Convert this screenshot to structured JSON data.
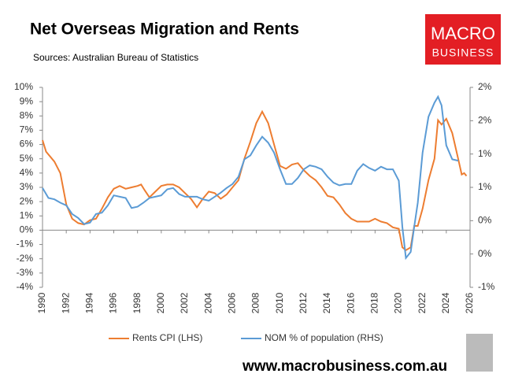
{
  "chart_data": {
    "type": "line",
    "title": "Net Overseas Migration and Rents",
    "subtitle": "Sources: Australian Bureau of Statistics",
    "xlim": [
      1990,
      2026
    ],
    "xticks": [
      1990,
      1992,
      1994,
      1996,
      1998,
      2000,
      2002,
      2004,
      2006,
      2008,
      2010,
      2012,
      2014,
      2016,
      2018,
      2020,
      2022,
      2024,
      2026
    ],
    "ylim": [
      -4,
      10
    ],
    "yticks": [
      {
        "value": -4,
        "label": "-4%"
      },
      {
        "value": -3,
        "label": "-3%"
      },
      {
        "value": -2,
        "label": "-2%"
      },
      {
        "value": -1,
        "label": "-1%"
      },
      {
        "value": 0,
        "label": "0%"
      },
      {
        "value": 1,
        "label": "1%"
      },
      {
        "value": 2,
        "label": "2%"
      },
      {
        "value": 3,
        "label": "3%"
      },
      {
        "value": 4,
        "label": "4%"
      },
      {
        "value": 5,
        "label": "5%"
      },
      {
        "value": 6,
        "label": "6%"
      },
      {
        "value": 7,
        "label": "7%"
      },
      {
        "value": 8,
        "label": "8%"
      },
      {
        "value": 9,
        "label": "9%"
      },
      {
        "value": 10,
        "label": "10%"
      }
    ],
    "y2lim": [
      -1,
      2
    ],
    "y2ticks": [
      {
        "value": -1,
        "label": "-1%"
      },
      {
        "value": -0.5,
        "label": "0%"
      },
      {
        "value": 0,
        "label": "0%"
      },
      {
        "value": 0.5,
        "label": "1%"
      },
      {
        "value": 1,
        "label": "1%"
      },
      {
        "value": 1.5,
        "label": "2%"
      },
      {
        "value": 2,
        "label": "2%"
      }
    ],
    "grid": false,
    "legend": "bottom",
    "series": [
      {
        "name": "Rents CPI (LHS)",
        "color": "#ED7D31",
        "x": [
          1990.0,
          1990.3,
          1991.0,
          1991.5,
          1992.0,
          1992.5,
          1993.0,
          1993.5,
          1994.0,
          1994.5,
          1995.0,
          1995.5,
          1996.0,
          1996.5,
          1997.0,
          1997.5,
          1998.0,
          1998.3,
          1998.6,
          1999.0,
          1999.5,
          2000.0,
          2000.5,
          2001.0,
          2001.5,
          2002.0,
          2002.5,
          2003.0,
          2003.5,
          2004.0,
          2004.5,
          2005.0,
          2005.5,
          2006.0,
          2006.5,
          2007.0,
          2007.5,
          2008.0,
          2008.5,
          2009.0,
          2009.5,
          2010.0,
          2010.5,
          2011.0,
          2011.5,
          2012.0,
          2012.5,
          2013.0,
          2013.5,
          2014.0,
          2014.5,
          2015.0,
          2015.5,
          2016.0,
          2016.5,
          2017.0,
          2017.5,
          2018.0,
          2018.5,
          2019.0,
          2019.5,
          2020.0,
          2020.3,
          2020.6,
          2021.0,
          2021.3,
          2021.6,
          2022.0,
          2022.5,
          2023.0,
          2023.3,
          2023.6,
          2024.0,
          2024.5,
          2025.0,
          2025.3,
          2025.5,
          2025.7
        ],
        "values": [
          6.3,
          5.5,
          4.8,
          4.0,
          1.8,
          0.8,
          0.5,
          0.4,
          0.7,
          0.8,
          1.5,
          2.3,
          2.9,
          3.1,
          2.9,
          3.0,
          3.1,
          3.2,
          2.8,
          2.3,
          2.7,
          3.1,
          3.2,
          3.2,
          3.0,
          2.6,
          2.2,
          1.6,
          2.2,
          2.7,
          2.6,
          2.2,
          2.5,
          3.0,
          3.5,
          5.0,
          6.2,
          7.5,
          8.3,
          7.5,
          6.0,
          4.5,
          4.3,
          4.6,
          4.7,
          4.2,
          3.8,
          3.5,
          3.0,
          2.4,
          2.3,
          1.8,
          1.2,
          0.8,
          0.6,
          0.6,
          0.6,
          0.8,
          0.6,
          0.5,
          0.2,
          0.1,
          -1.2,
          -1.4,
          -1.2,
          0.3,
          0.3,
          1.5,
          3.5,
          5.0,
          7.7,
          7.4,
          7.8,
          6.8,
          5.0,
          3.9,
          4.0,
          3.8
        ]
      },
      {
        "name": "NOM % of population (RHS)",
        "color": "#5B9BD5",
        "axis": "y2",
        "x": [
          1990.0,
          1990.5,
          1991.0,
          1991.5,
          1992.0,
          1992.5,
          1993.0,
          1993.5,
          1994.0,
          1994.5,
          1995.0,
          1995.5,
          1996.0,
          1996.5,
          1997.0,
          1997.5,
          1998.0,
          1998.5,
          1999.0,
          1999.5,
          2000.0,
          2000.5,
          2001.0,
          2001.5,
          2002.0,
          2002.5,
          2003.0,
          2003.5,
          2004.0,
          2004.5,
          2005.0,
          2005.5,
          2006.0,
          2006.5,
          2007.0,
          2007.5,
          2008.0,
          2008.5,
          2009.0,
          2009.5,
          2010.0,
          2010.5,
          2011.0,
          2011.5,
          2012.0,
          2012.5,
          2013.0,
          2013.5,
          2014.0,
          2014.5,
          2015.0,
          2015.5,
          2016.0,
          2016.5,
          2017.0,
          2017.5,
          2018.0,
          2018.5,
          2019.0,
          2019.5,
          2020.0,
          2020.3,
          2020.6,
          2021.0,
          2021.3,
          2021.6,
          2022.0,
          2022.5,
          2023.0,
          2023.3,
          2023.6,
          2024.0,
          2024.5,
          2025.0
        ],
        "values": [
          0.49,
          0.34,
          0.32,
          0.27,
          0.23,
          0.1,
          0.04,
          -0.05,
          -0.03,
          0.1,
          0.12,
          0.23,
          0.38,
          0.36,
          0.34,
          0.19,
          0.21,
          0.27,
          0.34,
          0.36,
          0.38,
          0.47,
          0.49,
          0.4,
          0.36,
          0.36,
          0.36,
          0.32,
          0.3,
          0.36,
          0.42,
          0.49,
          0.55,
          0.66,
          0.92,
          0.98,
          1.13,
          1.26,
          1.17,
          1.02,
          0.77,
          0.55,
          0.55,
          0.64,
          0.77,
          0.83,
          0.81,
          0.77,
          0.66,
          0.57,
          0.53,
          0.55,
          0.55,
          0.75,
          0.85,
          0.79,
          0.75,
          0.81,
          0.77,
          0.77,
          0.6,
          -0.09,
          -0.56,
          -0.47,
          -0.09,
          0.27,
          1.02,
          1.56,
          1.77,
          1.86,
          1.73,
          1.13,
          0.92,
          0.9
        ]
      }
    ]
  },
  "branding": {
    "logo_line1": "MACRO",
    "logo_line2": "BUSINESS",
    "website": "www.macrobusiness.com.au"
  }
}
